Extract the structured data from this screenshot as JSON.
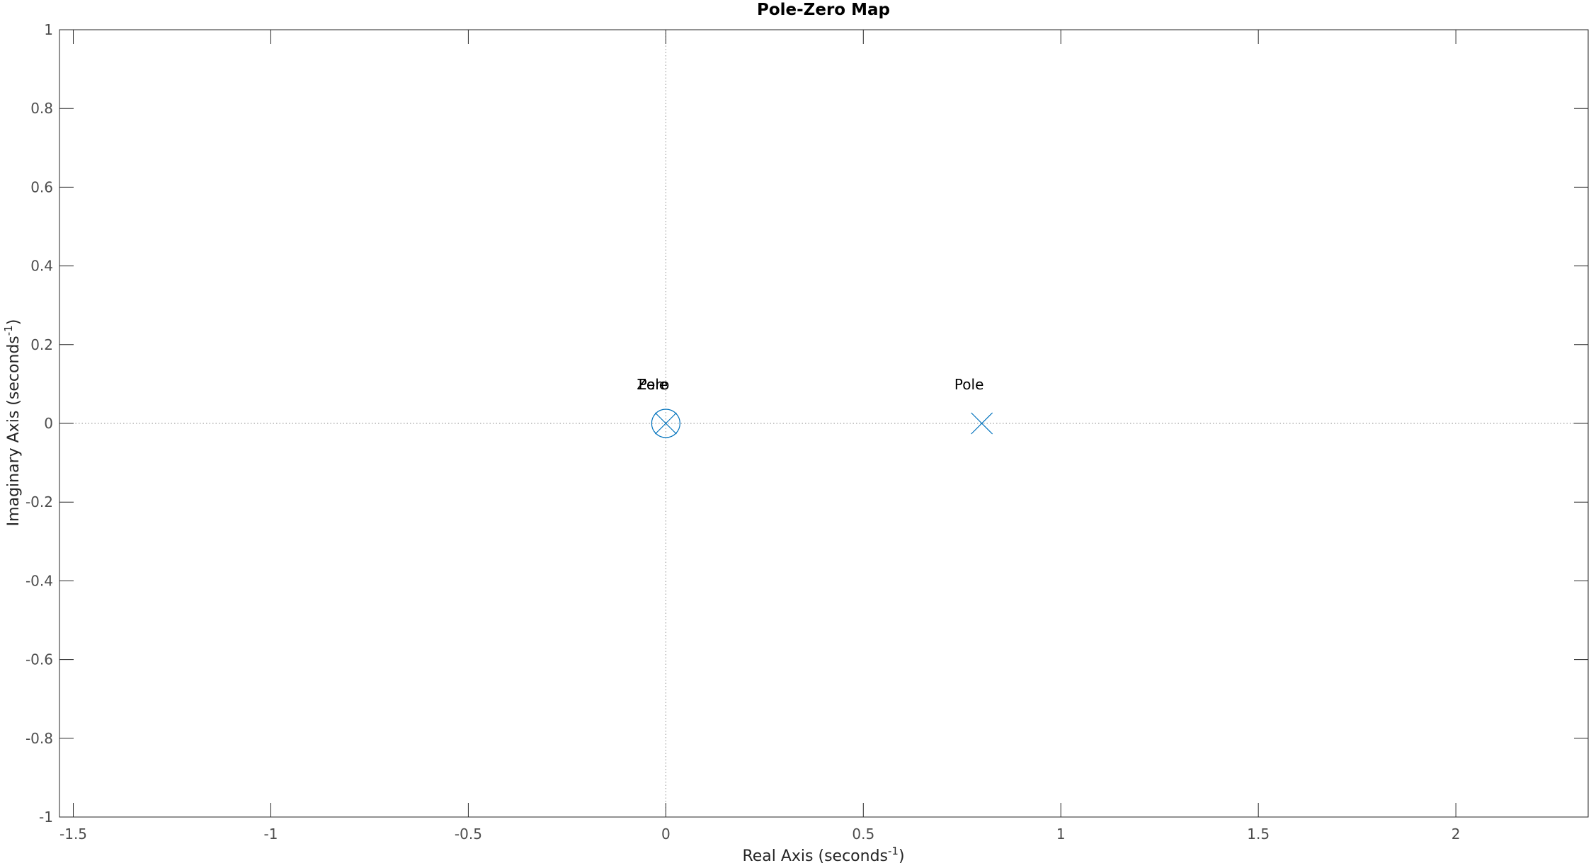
{
  "chart_data": {
    "type": "scatter",
    "title": "Pole-Zero Map",
    "xlabel": {
      "text": "Real Axis (seconds",
      "superscript": "-1",
      "suffix": ")"
    },
    "ylabel": {
      "text": "Imaginary Axis (seconds",
      "superscript": "-1",
      "suffix": ")"
    },
    "xlim": [
      -1.535,
      2.335
    ],
    "ylim": [
      -1,
      1
    ],
    "xticks": [
      -1.5,
      -1,
      -0.5,
      0,
      0.5,
      1,
      1.5,
      2
    ],
    "xtick_labels": [
      "-1.5",
      "-1",
      "-0.5",
      "0",
      "0.5",
      "1",
      "1.5",
      "2"
    ],
    "yticks": [
      -1,
      -0.8,
      -0.6,
      -0.4,
      -0.2,
      0,
      0.2,
      0.4,
      0.6,
      0.8,
      1
    ],
    "ytick_labels": [
      "-1",
      "-0.8",
      "-0.6",
      "-0.4",
      "-0.2",
      "0",
      "0.2",
      "0.4",
      "0.6",
      "0.8",
      "1"
    ],
    "grid": false,
    "reference_lines": {
      "x": 0,
      "y": 0,
      "style": "dotted"
    },
    "marker_color": "#0072bd",
    "points": [
      {
        "kind": "zero",
        "marker": "circle",
        "x": 0,
        "y": 0,
        "label": "Zero"
      },
      {
        "kind": "pole",
        "marker": "x",
        "x": 0,
        "y": 0,
        "label": "Pole"
      },
      {
        "kind": "pole",
        "marker": "x",
        "x": 0.8,
        "y": 0,
        "label": "Pole"
      }
    ]
  }
}
